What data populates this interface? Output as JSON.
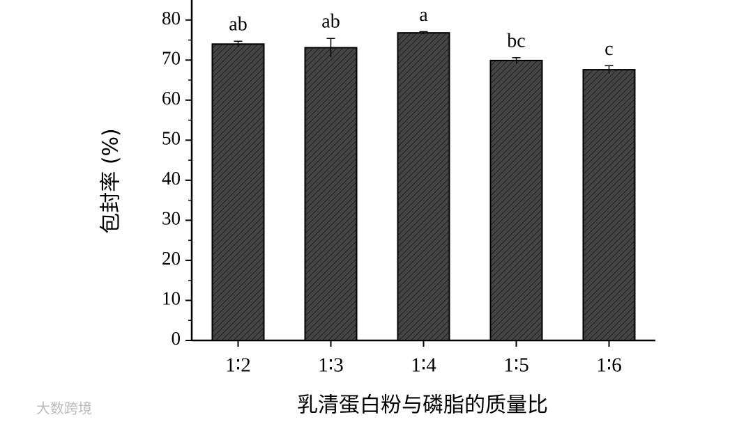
{
  "chart_data": {
    "type": "bar",
    "x_label": "乳清蛋白粉与磷脂的质量比",
    "y_label": "包封率 (%)",
    "categories": [
      "1∶2",
      "1∶3",
      "1∶4",
      "1∶5",
      "1∶6"
    ],
    "values": [
      74,
      73.1,
      76.8,
      69.9,
      67.6
    ],
    "errors": [
      0.7,
      2.3,
      0.3,
      0.7,
      1.0
    ],
    "significance_labels": [
      "ab",
      "ab",
      "a",
      "bc",
      "c"
    ],
    "color": "#3d3d3d",
    "ylim": [
      0,
      85
    ],
    "yticks": [
      0,
      10,
      20,
      30,
      40,
      50,
      60,
      70,
      80
    ],
    "watermark": "大数跨境"
  }
}
